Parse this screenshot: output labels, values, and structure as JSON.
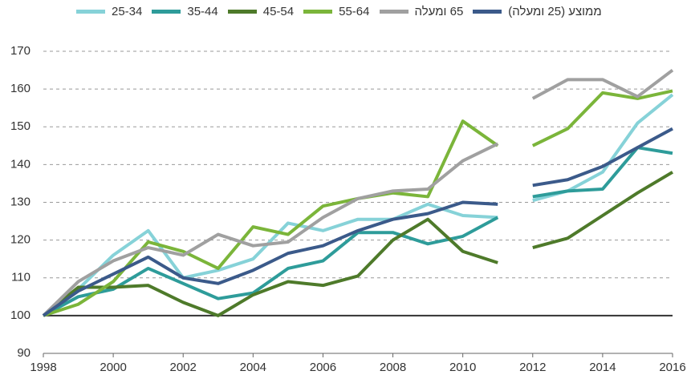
{
  "chart_data": {
    "type": "line",
    "x": [
      1998,
      1999,
      2000,
      2001,
      2002,
      2003,
      2004,
      2005,
      2006,
      2007,
      2008,
      2009,
      2010,
      2011,
      2012,
      2013,
      2014,
      2015,
      2016
    ],
    "gap_after": 2011,
    "xlim": [
      1998,
      2016
    ],
    "xticks": [
      1998,
      2000,
      2002,
      2004,
      2006,
      2008,
      2010,
      2012,
      2014,
      2016
    ],
    "ylim": [
      90,
      170
    ],
    "yticks": [
      90,
      100,
      110,
      120,
      130,
      140,
      150,
      160,
      170
    ],
    "grid": true,
    "reference_line": 100,
    "legend": "top",
    "series": [
      {
        "name": "25-34",
        "color": "#86d2d8",
        "values": [
          100,
          107,
          116,
          122.5,
          110,
          112,
          115,
          124.5,
          122.5,
          125.5,
          125.5,
          129.5,
          126.5,
          126,
          130.5,
          133,
          138,
          151,
          158.5
        ]
      },
      {
        "name": "35-44",
        "color": "#2e9c9a",
        "values": [
          100,
          105,
          107,
          112.5,
          108.5,
          104.5,
          106,
          112.5,
          114.5,
          122,
          122,
          119,
          121,
          126,
          131.5,
          133,
          133.5,
          144.5,
          143
        ]
      },
      {
        "name": "45-54",
        "color": "#4e7a2a",
        "values": [
          100,
          107.5,
          107.5,
          108,
          103.5,
          100,
          105.5,
          109,
          108,
          110.5,
          120,
          125.5,
          117,
          114,
          118,
          120.5,
          126.5,
          132.5,
          138
        ]
      },
      {
        "name": "55-64",
        "color": "#7bb53a",
        "values": [
          100,
          103,
          109,
          119.5,
          117,
          112.5,
          123.5,
          121.5,
          129,
          131,
          132.5,
          131.5,
          151.5,
          145,
          145,
          149.5,
          159,
          157.5,
          159.5
        ]
      },
      {
        "name": "65 ומעלה",
        "color": "#a0a0a0",
        "values": [
          100,
          109,
          114.5,
          118,
          116,
          121.5,
          118.5,
          119.5,
          126,
          131,
          133,
          133.5,
          141,
          145.5,
          157.5,
          162.5,
          162.5,
          158,
          165
        ]
      },
      {
        "name": "ממוצע (25 ומעלה)",
        "color": "#3b5a8a",
        "values": [
          100,
          106.5,
          111,
          115.5,
          110,
          108.5,
          112,
          116.5,
          118.5,
          122.5,
          125.5,
          127,
          130,
          129.5,
          134.5,
          136,
          139.5,
          144.5,
          149.5
        ]
      }
    ]
  }
}
